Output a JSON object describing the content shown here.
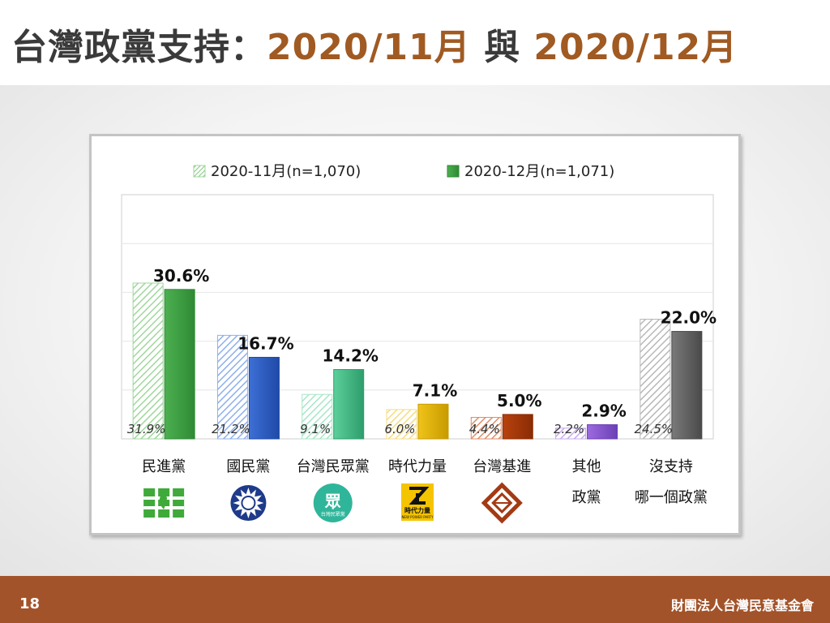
{
  "header": {
    "title_prefix": "台灣政黨支持：",
    "title_accent_1": "2020/11月",
    "title_mid": " 與 ",
    "title_accent_2": "2020/12月"
  },
  "footer": {
    "page_number": "18",
    "organization": "財團法人台灣民意基金會"
  },
  "colors": {
    "title_text": "#3a3a3a",
    "title_accent": "#a05a22",
    "footer_bg": "#a3532a"
  },
  "chart_data": {
    "type": "bar",
    "ylim": [
      0,
      50
    ],
    "grid": true,
    "legend_position": "top",
    "series": [
      {
        "name": "2020-11月(n=1,070)",
        "style": "hatched",
        "values": [
          31.9,
          21.2,
          9.1,
          6.0,
          4.4,
          2.2,
          24.5
        ],
        "labels": [
          "31.9%",
          "21.2%",
          "9.1%",
          "6.0%",
          "4.4%",
          "2.2%",
          "24.5%"
        ]
      },
      {
        "name": "2020-12月(n=1,071)",
        "style": "solid",
        "values": [
          30.6,
          16.7,
          14.2,
          7.1,
          5.0,
          2.9,
          22.0
        ],
        "labels": [
          "30.6%",
          "16.7%",
          "14.2%",
          "7.1%",
          "5.0%",
          "2.9%",
          "22.0%"
        ]
      }
    ],
    "categories": [
      {
        "line1": "民進黨",
        "line2": "",
        "color": "#4cb050",
        "dark": "#2f8a34",
        "light": "#9fd79c",
        "icon": "dpp-logo-icon"
      },
      {
        "line1": "國民黨",
        "line2": "",
        "color": "#3d6fd6",
        "dark": "#1f4aa8",
        "light": "#8fb0ee",
        "icon": "kmt-logo-icon"
      },
      {
        "line1": "台灣民眾黨",
        "line2": "",
        "color": "#5ccf9a",
        "dark": "#2e9e6c",
        "light": "#a6e6c6",
        "icon": "tpp-logo-icon"
      },
      {
        "line1": "時代力量",
        "line2": "",
        "color": "#f0c419",
        "dark": "#c79a00",
        "light": "#f5dd84",
        "icon": "npp-logo-icon"
      },
      {
        "line1": "台灣基進",
        "line2": "",
        "color": "#b8420e",
        "dark": "#8a2c05",
        "light": "#e08d66",
        "icon": "tsp-logo-icon"
      },
      {
        "line1": "其他",
        "line2": "政黨",
        "color": "#9d6be0",
        "dark": "#6b3fb5",
        "light": "#c8a8f0",
        "icon": ""
      },
      {
        "line1": "沒支持",
        "line2": "哪一個政黨",
        "color": "#7a7a7a",
        "dark": "#4a4a4a",
        "light": "#b8b8b8",
        "icon": ""
      }
    ],
    "logos": {
      "tpp_text": "眾",
      "tpp_subtext": "台灣民眾黨",
      "npp_text": "時代力量",
      "npp_subtext": "NEW POWER PARTY"
    }
  }
}
